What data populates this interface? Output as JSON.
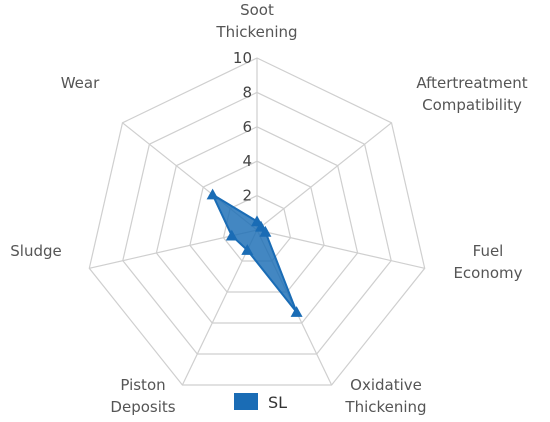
{
  "chart_data": {
    "type": "radar",
    "axes": [
      "Soot Thickening",
      "Aftertreatment Compatibility",
      "Fuel Economy",
      "Oxidative Thickening",
      "Piston Deposits",
      "Sludge",
      "Wear"
    ],
    "axis_label_lines": [
      [
        "Soot",
        "Thickening"
      ],
      [
        "Aftertreatment",
        "Compatibility"
      ],
      [
        "Fuel",
        "Economy"
      ],
      [
        "Oxidative",
        "Thickening"
      ],
      [
        "Piston",
        "Deposits"
      ],
      [
        "Sludge"
      ],
      [
        "Wear"
      ]
    ],
    "rlim": [
      0,
      10
    ],
    "ticks": [
      "2",
      "4",
      "6",
      "8",
      "10"
    ],
    "tick_values": [
      2,
      4,
      6,
      8,
      10
    ],
    "grid": true,
    "legend_position": "bottom",
    "series": [
      {
        "name": "SL",
        "values": [
          0.5,
          0.3,
          0.5,
          5.3,
          1.3,
          1.5,
          3.3
        ],
        "color": "#1a6cb5"
      }
    ]
  }
}
